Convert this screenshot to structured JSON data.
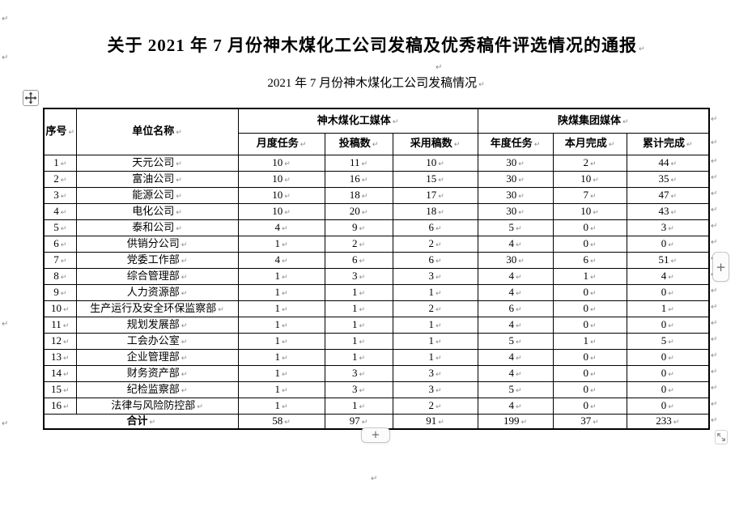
{
  "page": {
    "title": "关于 2021 年 7 月份神木煤化工公司发稿及优秀稿件评选情况的通报",
    "subtitle": "2021 年 7 月份神木煤化工公司发稿情况"
  },
  "marks": {
    "paragraph": "↵"
  },
  "controls": {
    "add_column_label": "+",
    "add_row_label": "+"
  },
  "table": {
    "headers": {
      "serial": "序号",
      "unit": "单位名称",
      "group1": "神木煤化工媒体",
      "group2": "陕煤集团媒体",
      "sub": [
        "月度任务",
        "投稿数",
        "采用稿数",
        "年度任务",
        "本月完成",
        "累计完成"
      ]
    },
    "rows": [
      {
        "no": "1",
        "unit": "天元公司",
        "values": [
          10,
          11,
          10,
          30,
          2,
          44
        ]
      },
      {
        "no": "2",
        "unit": "富油公司",
        "values": [
          10,
          16,
          15,
          30,
          10,
          35
        ]
      },
      {
        "no": "3",
        "unit": "能源公司",
        "values": [
          10,
          18,
          17,
          30,
          7,
          47
        ]
      },
      {
        "no": "4",
        "unit": "电化公司",
        "values": [
          10,
          20,
          18,
          30,
          10,
          43
        ]
      },
      {
        "no": "5",
        "unit": "泰和公司",
        "values": [
          4,
          9,
          6,
          5,
          0,
          3
        ]
      },
      {
        "no": "6",
        "unit": "供销分公司",
        "values": [
          1,
          2,
          2,
          4,
          0,
          0
        ]
      },
      {
        "no": "7",
        "unit": "党委工作部",
        "values": [
          4,
          6,
          6,
          30,
          6,
          51
        ]
      },
      {
        "no": "8",
        "unit": "综合管理部",
        "values": [
          1,
          3,
          3,
          4,
          1,
          4
        ]
      },
      {
        "no": "9",
        "unit": "人力资源部",
        "values": [
          1,
          1,
          1,
          4,
          0,
          0
        ]
      },
      {
        "no": "10",
        "unit": "生产运行及安全环保监察部",
        "values": [
          1,
          1,
          2,
          6,
          0,
          1
        ]
      },
      {
        "no": "11",
        "unit": "规划发展部",
        "values": [
          1,
          1,
          1,
          4,
          0,
          0
        ]
      },
      {
        "no": "12",
        "unit": "工会办公室",
        "values": [
          1,
          1,
          1,
          5,
          1,
          5
        ]
      },
      {
        "no": "13",
        "unit": "企业管理部",
        "values": [
          1,
          1,
          1,
          4,
          0,
          0
        ]
      },
      {
        "no": "14",
        "unit": "财务资产部",
        "values": [
          1,
          3,
          3,
          4,
          0,
          0
        ]
      },
      {
        "no": "15",
        "unit": "纪检监察部",
        "values": [
          1,
          3,
          3,
          5,
          0,
          0
        ]
      },
      {
        "no": "16",
        "unit": "法律与风险防控部",
        "values": [
          1,
          1,
          2,
          4,
          0,
          0
        ]
      }
    ],
    "total": {
      "label": "合计",
      "values": [
        58,
        97,
        91,
        199,
        37,
        233
      ]
    }
  }
}
